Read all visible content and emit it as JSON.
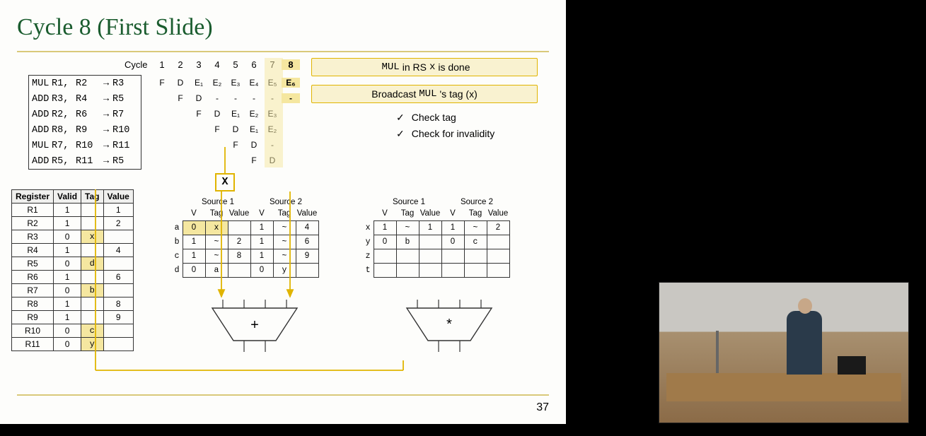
{
  "slide": {
    "title": "Cycle 8 (First Slide)",
    "page_number": "37",
    "title_color": "#1a5c2e",
    "accent_color": "#d9c97a",
    "highlight_color": "#f5e7a0",
    "background": "#fdfdfb"
  },
  "pipeline": {
    "cycle_label": "Cycle",
    "cycles": [
      "1",
      "2",
      "3",
      "4",
      "5",
      "6",
      "7",
      "8"
    ],
    "highlight_cycle_index": 7,
    "instructions": [
      {
        "op": "MUL",
        "s1": "R1,",
        "s2": "R2",
        "dst": "R3"
      },
      {
        "op": "ADD",
        "s1": "R3,",
        "s2": "R4",
        "dst": "R5"
      },
      {
        "op": "ADD",
        "s1": "R2,",
        "s2": "R6",
        "dst": "R7"
      },
      {
        "op": "ADD",
        "s1": "R8,",
        "s2": "R9",
        "dst": "R10"
      },
      {
        "op": "MUL",
        "s1": "R7,",
        "s2": "R10",
        "dst": "R11"
      },
      {
        "op": "ADD",
        "s1": "R5,",
        "s2": "R11",
        "dst": "R5"
      }
    ],
    "stages": [
      [
        "F",
        "D",
        "E₁",
        "E₂",
        "E₃",
        "E₄",
        "E₅",
        "E₆"
      ],
      [
        "",
        "F",
        "D",
        "-",
        "-",
        "-",
        "-",
        "-"
      ],
      [
        "",
        "",
        "F",
        "D",
        "E₁",
        "E₂",
        "E₃",
        ""
      ],
      [
        "",
        "",
        "",
        "F",
        "D",
        "E₁",
        "E₂",
        ""
      ],
      [
        "",
        "",
        "",
        "",
        "F",
        "D",
        "-",
        ""
      ],
      [
        "",
        "",
        "",
        "",
        "",
        "F",
        "D",
        ""
      ]
    ],
    "broadcast_tag": "X"
  },
  "rat": {
    "headers": [
      "Register",
      "Valid",
      "Tag",
      "Value"
    ],
    "rows": [
      {
        "reg": "R1",
        "valid": "1",
        "tag": "",
        "value": "1"
      },
      {
        "reg": "R2",
        "valid": "1",
        "tag": "",
        "value": "2"
      },
      {
        "reg": "R3",
        "valid": "0",
        "tag": "x",
        "value": ""
      },
      {
        "reg": "R4",
        "valid": "1",
        "tag": "",
        "value": "4"
      },
      {
        "reg": "R5",
        "valid": "0",
        "tag": "d",
        "value": ""
      },
      {
        "reg": "R6",
        "valid": "1",
        "tag": "",
        "value": "6"
      },
      {
        "reg": "R7",
        "valid": "0",
        "tag": "b",
        "value": ""
      },
      {
        "reg": "R8",
        "valid": "1",
        "tag": "",
        "value": "8"
      },
      {
        "reg": "R9",
        "valid": "1",
        "tag": "",
        "value": "9"
      },
      {
        "reg": "R10",
        "valid": "0",
        "tag": "c",
        "value": ""
      },
      {
        "reg": "R11",
        "valid": "0",
        "tag": "y",
        "value": ""
      }
    ],
    "tag_highlight_color": "#f5e7a0"
  },
  "rs_add": {
    "source1_label": "Source 1",
    "source2_label": "Source 2",
    "headers": [
      "V",
      "Tag",
      "Value",
      "V",
      "Tag",
      "Value"
    ],
    "row_labels": [
      "a",
      "b",
      "c",
      "d"
    ],
    "rows": [
      [
        {
          "v": "0",
          "hl": true
        },
        {
          "v": "x",
          "hl": true,
          "tag": true
        },
        {
          "v": ""
        },
        {
          "v": "1"
        },
        {
          "v": "~",
          "tag": true
        },
        {
          "v": "4"
        }
      ],
      [
        {
          "v": "1"
        },
        {
          "v": "~",
          "tag": true
        },
        {
          "v": "2"
        },
        {
          "v": "1"
        },
        {
          "v": "~",
          "tag": true
        },
        {
          "v": "6"
        }
      ],
      [
        {
          "v": "1"
        },
        {
          "v": "~",
          "tag": true
        },
        {
          "v": "8"
        },
        {
          "v": "1"
        },
        {
          "v": "~",
          "tag": true
        },
        {
          "v": "9"
        }
      ],
      [
        {
          "v": "0"
        },
        {
          "v": "a",
          "tag": true
        },
        {
          "v": ""
        },
        {
          "v": "0"
        },
        {
          "v": "y",
          "tag": true
        },
        {
          "v": ""
        }
      ]
    ],
    "fu_symbol": "+"
  },
  "rs_mul": {
    "source1_label": "Source 1",
    "source2_label": "Source 2",
    "headers": [
      "V",
      "Tag",
      "Value",
      "V",
      "Tag",
      "Value"
    ],
    "row_labels": [
      "x",
      "y",
      "z",
      "t"
    ],
    "rows": [
      [
        {
          "v": "1"
        },
        {
          "v": "~",
          "tag": true
        },
        {
          "v": "1"
        },
        {
          "v": "1"
        },
        {
          "v": "~",
          "tag": true
        },
        {
          "v": "2"
        }
      ],
      [
        {
          "v": "0"
        },
        {
          "v": "b",
          "tag": true
        },
        {
          "v": ""
        },
        {
          "v": "0"
        },
        {
          "v": "c",
          "tag": true
        },
        {
          "v": ""
        }
      ],
      [
        {
          "v": ""
        },
        {
          "v": ""
        },
        {
          "v": ""
        },
        {
          "v": ""
        },
        {
          "v": ""
        },
        {
          "v": ""
        }
      ],
      [
        {
          "v": ""
        },
        {
          "v": ""
        },
        {
          "v": ""
        },
        {
          "v": ""
        },
        {
          "v": ""
        },
        {
          "v": ""
        }
      ]
    ],
    "fu_symbol": "*"
  },
  "messages": {
    "msg1_prefix": "MUL",
    "msg1_mid": " in RS ",
    "msg1_tag": "x",
    "msg1_suffix": " is done",
    "msg2_prefix": "Broadcast ",
    "msg2_mono": "MUL",
    "msg2_suffix": "'s tag (x)"
  },
  "checks": {
    "items": [
      "Check tag",
      "Check for invalidity"
    ],
    "tick": "✓"
  },
  "arrows": {
    "stroke": "#e0b400",
    "width": 1.8
  }
}
